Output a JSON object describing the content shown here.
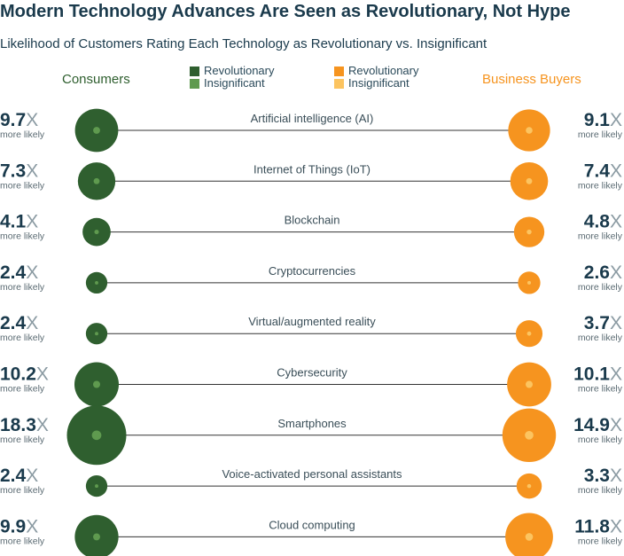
{
  "title": "Modern Technology Advances Are Seen as Revolutionary, Not Hype",
  "subtitle": "Likelihood of Customers Rating Each Technology as Revolutionary vs. Insignificant",
  "colors": {
    "consumer_revolutionary": "#2f5f2f",
    "consumer_insignificant": "#5f9a4f",
    "business_revolutionary": "#f6941f",
    "business_insignificant": "#fcc460",
    "text": "#1a3a4c",
    "line": "#333333"
  },
  "legend": {
    "consumers_label": "Consumers",
    "business_label": "Business Buyers",
    "consumer_items": [
      "Revolutionary",
      "Insignificant"
    ],
    "business_items": [
      "Revolutionary",
      "Insignificant"
    ]
  },
  "suffix": "X",
  "sub_label": "more likely",
  "chart_data": {
    "type": "bubble-comparison",
    "title": "Modern Technology Advances Are Seen as Revolutionary, Not Hype",
    "subtitle": "Likelihood of Customers Rating Each Technology as Revolutionary vs. Insignificant",
    "categories": [
      "Artificial intelligence (AI)",
      "Internet of Things (IoT)",
      "Blockchain",
      "Cryptocurrencies",
      "Virtual/augmented reality",
      "Cybersecurity",
      "Smartphones",
      "Voice-activated personal assistants",
      "Cloud computing"
    ],
    "series": [
      {
        "name": "Consumers",
        "values": [
          9.7,
          7.3,
          4.1,
          2.4,
          2.4,
          10.2,
          18.3,
          2.4,
          9.9
        ],
        "labels": [
          "9.7",
          "7.3",
          "4.1",
          "2.4",
          "2.4",
          "10.2",
          "18.3",
          "2.4",
          "9.9"
        ]
      },
      {
        "name": "Business Buyers",
        "values": [
          9.1,
          7.4,
          4.8,
          2.6,
          3.7,
          10.1,
          14.9,
          3.3,
          11.8
        ],
        "labels": [
          "9.1",
          "7.4",
          "4.8",
          "2.6",
          "3.7",
          "10.1",
          "14.9",
          "3.3",
          "11.8"
        ]
      }
    ]
  }
}
